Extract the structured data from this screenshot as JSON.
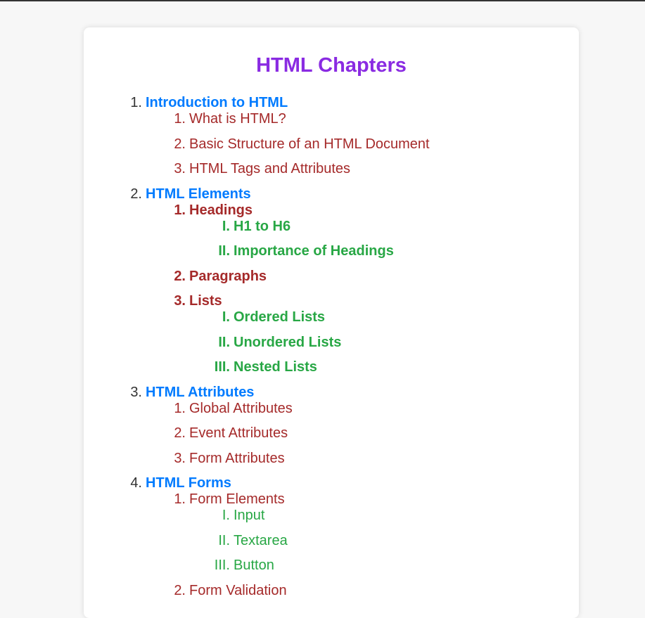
{
  "title": "HTML Chapters",
  "colors": {
    "title": "#8a2be2",
    "chapter": "#007bff",
    "section": "#a52a2a",
    "subsection": "#28a745",
    "marker": "#333333"
  },
  "chapters": [
    {
      "marker": "1.",
      "label": "Introduction to HTML",
      "sections": [
        {
          "marker": "1.",
          "label": "What is HTML?",
          "bold": false,
          "subsections": []
        },
        {
          "marker": "2.",
          "label": "Basic Structure of an HTML Document",
          "bold": false,
          "subsections": []
        },
        {
          "marker": "3.",
          "label": "HTML Tags and Attributes",
          "bold": false,
          "subsections": []
        }
      ]
    },
    {
      "marker": "2.",
      "label": "HTML Elements",
      "sections": [
        {
          "marker": "1.",
          "label": "Headings",
          "bold": true,
          "subsections": [
            {
              "marker": "I.",
              "label": "H1 to H6",
              "bold": true
            },
            {
              "marker": "II.",
              "label": "Importance of Headings",
              "bold": true
            }
          ]
        },
        {
          "marker": "2.",
          "label": "Paragraphs",
          "bold": true,
          "subsections": []
        },
        {
          "marker": "3.",
          "label": "Lists",
          "bold": true,
          "subsections": [
            {
              "marker": "I.",
              "label": "Ordered Lists",
              "bold": true
            },
            {
              "marker": "II.",
              "label": "Unordered Lists",
              "bold": true
            },
            {
              "marker": "III.",
              "label": "Nested Lists",
              "bold": true
            }
          ]
        }
      ]
    },
    {
      "marker": "3.",
      "label": "HTML Attributes",
      "sections": [
        {
          "marker": "1.",
          "label": "Global Attributes",
          "bold": false,
          "subsections": []
        },
        {
          "marker": "2.",
          "label": "Event Attributes",
          "bold": false,
          "subsections": []
        },
        {
          "marker": "3.",
          "label": "Form Attributes",
          "bold": false,
          "subsections": []
        }
      ]
    },
    {
      "marker": "4.",
      "label": "HTML Forms",
      "sections": [
        {
          "marker": "1.",
          "label": "Form Elements",
          "bold": false,
          "subsections": [
            {
              "marker": "I.",
              "label": "Input",
              "bold": false
            },
            {
              "marker": "II.",
              "label": "Textarea",
              "bold": false
            },
            {
              "marker": "III.",
              "label": "Button",
              "bold": false
            }
          ]
        },
        {
          "marker": "2.",
          "label": "Form Validation",
          "bold": false,
          "subsections": []
        }
      ]
    }
  ]
}
